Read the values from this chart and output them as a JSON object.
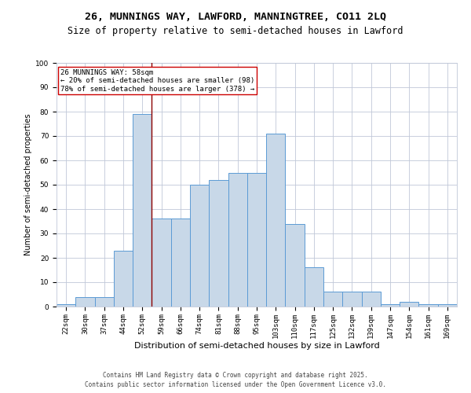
{
  "title1": "26, MUNNINGS WAY, LAWFORD, MANNINGTREE, CO11 2LQ",
  "title2": "Size of property relative to semi-detached houses in Lawford",
  "xlabel": "Distribution of semi-detached houses by size in Lawford",
  "ylabel": "Number of semi-detached properties",
  "categories": [
    "22sqm",
    "30sqm",
    "37sqm",
    "44sqm",
    "52sqm",
    "59sqm",
    "66sqm",
    "74sqm",
    "81sqm",
    "88sqm",
    "95sqm",
    "103sqm",
    "110sqm",
    "117sqm",
    "125sqm",
    "132sqm",
    "139sqm",
    "147sqm",
    "154sqm",
    "161sqm",
    "169sqm"
  ],
  "values": [
    1,
    4,
    4,
    23,
    79,
    36,
    36,
    50,
    52,
    55,
    55,
    71,
    34,
    16,
    6,
    6,
    6,
    1,
    2,
    1,
    1
  ],
  "bar_color": "#c8d8e8",
  "bar_edge_color": "#5b9bd5",
  "highlight_index": 4,
  "highlight_line_color": "#8b0000",
  "annotation_box_color": "#ffffff",
  "annotation_box_edge": "#cc0000",
  "annotation_text": "26 MUNNINGS WAY: 58sqm\n← 20% of semi-detached houses are smaller (98)\n78% of semi-detached houses are larger (378) →",
  "ylim": [
    0,
    100
  ],
  "yticks": [
    0,
    10,
    20,
    30,
    40,
    50,
    60,
    70,
    80,
    90,
    100
  ],
  "bg_color": "#ffffff",
  "grid_color": "#c0c8d8",
  "footer1": "Contains HM Land Registry data © Crown copyright and database right 2025.",
  "footer2": "Contains public sector information licensed under the Open Government Licence v3.0.",
  "title1_fontsize": 9.5,
  "title2_fontsize": 8.5,
  "xlabel_fontsize": 8,
  "ylabel_fontsize": 7,
  "tick_fontsize": 6.5,
  "annotation_fontsize": 6.5,
  "footer_fontsize": 5.5
}
